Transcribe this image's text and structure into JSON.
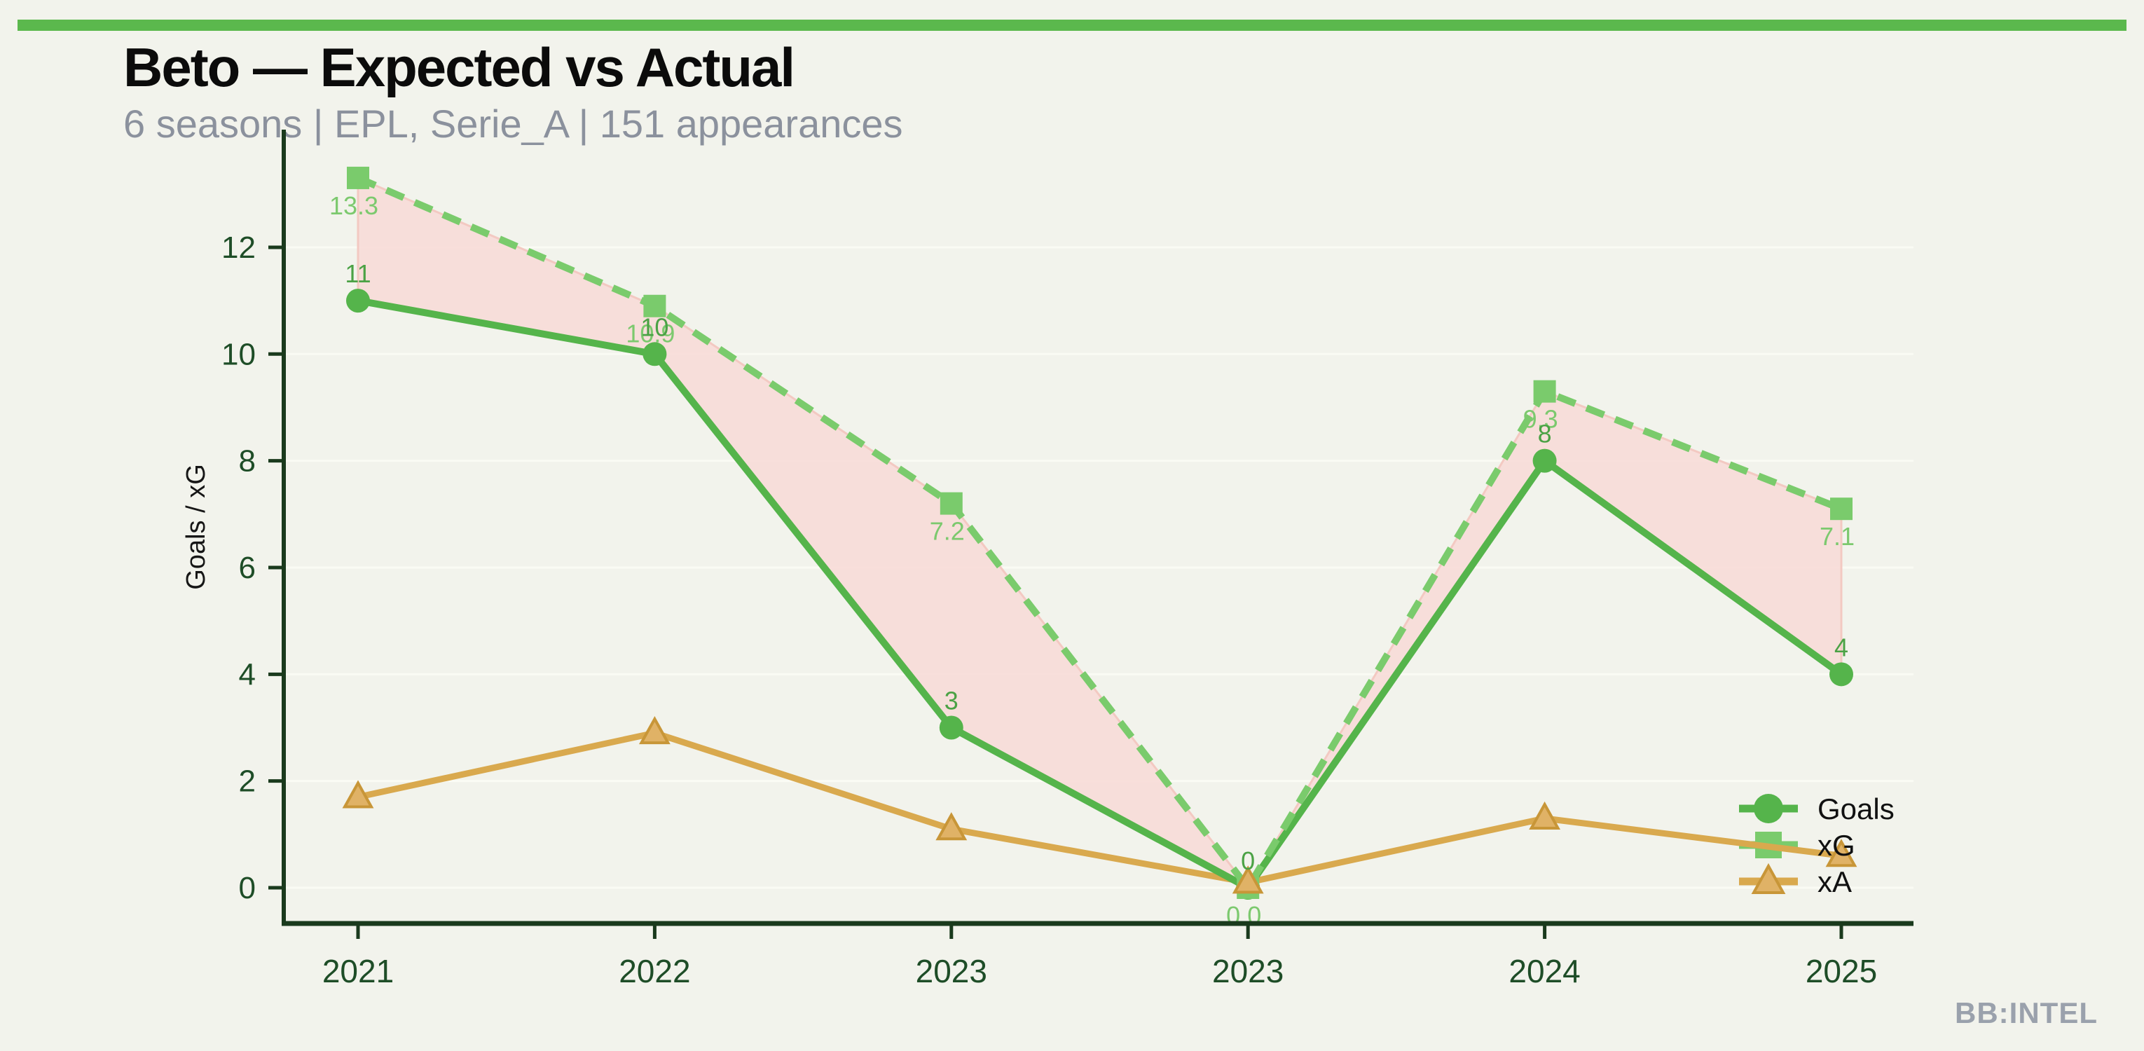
{
  "header": {
    "title": "Beto — Expected vs Actual",
    "subtitle": "6 seasons | EPL, Serie_A | 151 appearances"
  },
  "watermark": "BB:INTEL",
  "colors": {
    "background": "#f2f3ec",
    "top_bar": "#5bb84d",
    "goals_line": "#55b44b",
    "goals_label": "#4ba245",
    "xg_line": "#7acb6c",
    "xg_label": "#7cc96e",
    "xa_line": "#d9a94e",
    "xa_marker_fill": "#e0b266",
    "xa_marker_edge": "#c89638",
    "band_fill": "#f7dcd8",
    "band_edge": "#f3c9c2",
    "axis": "#1a3a1d",
    "tick_label": "#1e4d27",
    "grid": "#fafbf4",
    "title": "#0b0b0b",
    "subtitle": "#8b919d",
    "legend_text": "#111111",
    "watermark": "#9aa1ac"
  },
  "chart_data": {
    "type": "line",
    "categories": [
      "2021",
      "2022",
      "2023",
      "2023",
      "2024",
      "2025"
    ],
    "series": [
      {
        "name": "Goals",
        "marker": "circle",
        "style": "solid",
        "values": [
          11,
          10,
          3,
          0,
          8,
          4
        ],
        "labels": [
          "11",
          "10",
          "3",
          "0",
          "8",
          "4"
        ]
      },
      {
        "name": "xG",
        "marker": "square",
        "style": "dashed",
        "values": [
          13.3,
          10.9,
          7.2,
          0.0,
          9.3,
          7.1
        ],
        "labels": [
          "13.3",
          "10.9",
          "7.2",
          "0.0",
          "9.3",
          "7.1"
        ]
      },
      {
        "name": "xA",
        "marker": "triangle",
        "style": "solid",
        "values": [
          1.7,
          2.9,
          1.1,
          0.1,
          1.3,
          0.6
        ],
        "labels": null
      }
    ],
    "ylabel": "Goals / xG",
    "xlabel": "",
    "yticks": [
      0,
      2,
      4,
      6,
      8,
      10,
      12
    ],
    "ylim": [
      -0.7,
      14.2
    ],
    "grid": "faint horizontal gridlines at y ticks",
    "band_between": [
      "xG",
      "Goals"
    ],
    "legend": {
      "entries": [
        "Goals",
        "xG",
        "xA"
      ],
      "position": "lower right",
      "frame": false
    }
  }
}
